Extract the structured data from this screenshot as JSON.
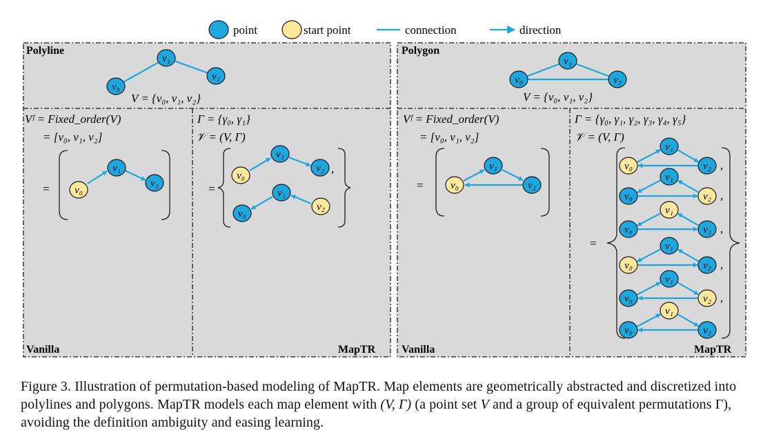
{
  "colors": {
    "point_fill": "#1ba8e0",
    "start_fill": "#fde89c",
    "edge": "#1ba8e0",
    "panel_bg": "#d9d9d9",
    "stroke": "#1a1a1a"
  },
  "legend": {
    "point": "point",
    "start_point": "start point",
    "connection": "connection",
    "direction": "direction"
  },
  "polyline": {
    "title": "Polyline",
    "set_def": "V = {v₀, v₁, v₂}",
    "vanilla": {
      "line1": "Vᶠ = Fixed_order(V)",
      "line2": "= [v₀, v₁, v₂]",
      "eq": "=",
      "label": "Vanilla"
    },
    "maptr": {
      "line1": "Γ = {γ₀, γ₁}",
      "line2": "𝒱 = (V, Γ)",
      "eq": "=",
      "comma": ",",
      "label": "MapTR"
    }
  },
  "polygon": {
    "title": "Polygon",
    "set_def": "V = {v₀, v₁, v₂}",
    "vanilla": {
      "line1": "Vᶠ = Fixed_order(V)",
      "line2": "= [v₀, v₁, v₂]",
      "eq": "=",
      "label": "Vanilla"
    },
    "maptr": {
      "line1": "Γ = {γ₀, γ₁, γ₂, γ₃, γ₄, γ₅}",
      "line2": "𝒱 = (V, Γ)",
      "eq": "=",
      "comma": ",",
      "label": "MapTR"
    }
  },
  "vertex_labels": {
    "v0": "v₀",
    "v1": "v₁",
    "v2": "v₂"
  },
  "caption": {
    "prefix": "Figure 3.  Illustration of permutation-based modeling of MapTR. Map elements are geometrically abstracted and discretized into polylines and polygons. MapTR models each map element with ",
    "pair": "(V, Γ)",
    "middle": " (a point set ",
    "v": "V",
    "suffix": " and a group of equivalent permutations Γ), avoiding the definition ambiguity and easing learning."
  }
}
